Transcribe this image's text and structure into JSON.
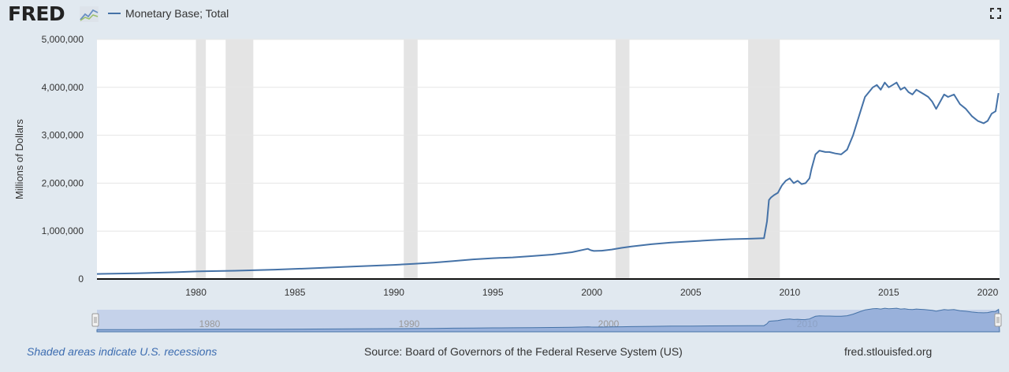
{
  "header": {
    "logo": "FRED",
    "legend_label": "Monetary Base; Total",
    "line_color": "#4572a7"
  },
  "icons": {
    "fullscreen": "fullscreen-icon",
    "logo_mark": "chart-line-icon"
  },
  "chart_data": {
    "type": "line",
    "title": "",
    "ylabel": "Millions of Dollars",
    "xlim": [
      1975.0,
      2020.6
    ],
    "ylim": [
      0,
      5000000
    ],
    "yticks": [
      0,
      1000000,
      2000000,
      3000000,
      4000000,
      5000000
    ],
    "ytick_labels": [
      "0",
      "1,000,000",
      "2,000,000",
      "3,000,000",
      "4,000,000",
      "5,000,000"
    ],
    "xticks": [
      1980,
      1985,
      1990,
      1995,
      2000,
      2005,
      2010,
      2015,
      2020
    ],
    "xtick_labels": [
      "1980",
      "1985",
      "1990",
      "1995",
      "2000",
      "2005",
      "2010",
      "2015",
      "2020"
    ],
    "grid": true,
    "recessions": [
      [
        1980.0,
        1980.5
      ],
      [
        1981.5,
        1982.9
      ],
      [
        1990.5,
        1991.2
      ],
      [
        2001.2,
        2001.9
      ],
      [
        2007.9,
        2009.5
      ]
    ],
    "series": [
      {
        "name": "Monetary Base; Total",
        "x": [
          1975.0,
          1977.0,
          1979.0,
          1980.0,
          1982.0,
          1984.0,
          1986.0,
          1988.0,
          1990.0,
          1991.0,
          1992.0,
          1993.0,
          1994.0,
          1995.0,
          1996.0,
          1997.0,
          1998.0,
          1999.0,
          1999.8,
          1999.95,
          2000.1,
          2000.5,
          2001.0,
          2001.5,
          2002.0,
          2003.0,
          2004.0,
          2005.0,
          2006.0,
          2007.0,
          2008.0,
          2008.7,
          2008.85,
          2008.95,
          2009.05,
          2009.2,
          2009.4,
          2009.6,
          2009.8,
          2010.0,
          2010.2,
          2010.4,
          2010.6,
          2010.8,
          2011.0,
          2011.1,
          2011.3,
          2011.5,
          2011.8,
          2012.0,
          2012.3,
          2012.6,
          2012.9,
          2013.2,
          2013.5,
          2013.8,
          2014.0,
          2014.2,
          2014.4,
          2014.6,
          2014.8,
          2015.0,
          2015.2,
          2015.4,
          2015.6,
          2015.8,
          2016.0,
          2016.2,
          2016.4,
          2016.6,
          2016.8,
          2017.0,
          2017.2,
          2017.4,
          2017.6,
          2017.8,
          2018.0,
          2018.3,
          2018.6,
          2018.9,
          2019.2,
          2019.5,
          2019.8,
          2020.0,
          2020.2,
          2020.4,
          2020.55
        ],
        "values": [
          105000,
          120000,
          142000,
          158000,
          172000,
          195000,
          225000,
          262000,
          295000,
          315000,
          342000,
          375000,
          410000,
          435000,
          450000,
          478000,
          510000,
          560000,
          630000,
          600000,
          585000,
          590000,
          615000,
          650000,
          680000,
          725000,
          760000,
          785000,
          810000,
          830000,
          840000,
          850000,
          1200000,
          1650000,
          1700000,
          1750000,
          1800000,
          1950000,
          2050000,
          2100000,
          2000000,
          2050000,
          1980000,
          2000000,
          2100000,
          2300000,
          2600000,
          2680000,
          2650000,
          2650000,
          2620000,
          2600000,
          2700000,
          3000000,
          3400000,
          3800000,
          3900000,
          4000000,
          4050000,
          3950000,
          4100000,
          4000000,
          4050000,
          4100000,
          3950000,
          4000000,
          3900000,
          3850000,
          3950000,
          3900000,
          3850000,
          3800000,
          3700000,
          3550000,
          3700000,
          3850000,
          3800000,
          3850000,
          3650000,
          3550000,
          3400000,
          3300000,
          3250000,
          3300000,
          3450000,
          3500000,
          3880000
        ]
      }
    ]
  },
  "navigator": {
    "labels": [
      "1980",
      "1990",
      "2000",
      "2010"
    ]
  },
  "footer": {
    "recession_note": "Shaded areas indicate U.S. recessions",
    "source": "Source: Board of Governors of the Federal Reserve System (US)",
    "site": "fred.stlouisfed.org"
  }
}
